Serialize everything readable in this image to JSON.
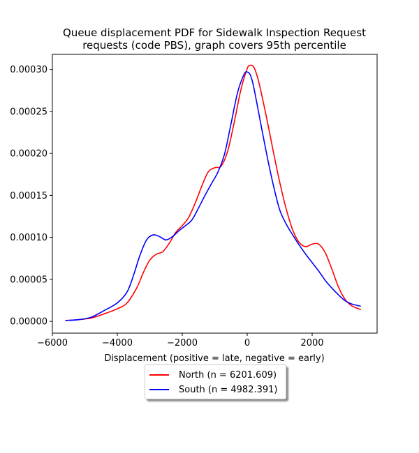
{
  "chart_data": {
    "type": "line",
    "title_line1": "Queue displacement PDF for Sidewalk Inspection Request",
    "title_line2": "requests (code PBS), graph covers 95th percentile",
    "xlabel": "Displacement (positive = late, negative = early)",
    "ylabel": "",
    "xlim": [
      -6000,
      4000
    ],
    "ylim": [
      -1.4e-05,
      0.000318
    ],
    "xticks": [
      -6000,
      -4000,
      -2000,
      0,
      2000
    ],
    "xtick_labels": [
      "−6000",
      "−4000",
      "−2000",
      "0",
      "2000"
    ],
    "yticks": [
      0,
      5e-05,
      0.0001,
      0.00015,
      0.0002,
      0.00025,
      0.0003
    ],
    "ytick_labels": [
      "0.00000",
      "0.00005",
      "0.00010",
      "0.00015",
      "0.00020",
      "0.00025",
      "0.00030"
    ],
    "grid": false,
    "legend_position": "below-center",
    "series": [
      {
        "name": "North (n = 6201.609)",
        "color": "#ff0000",
        "x": [
          -5600,
          -5200,
          -4800,
          -4400,
          -4000,
          -3700,
          -3400,
          -3200,
          -3000,
          -2800,
          -2600,
          -2400,
          -2200,
          -2000,
          -1800,
          -1600,
          -1400,
          -1200,
          -1000,
          -800,
          -600,
          -400,
          -200,
          0,
          100,
          200,
          300,
          400,
          600,
          800,
          1000,
          1200,
          1400,
          1600,
          1800,
          2000,
          2200,
          2400,
          2600,
          2800,
          3000,
          3200,
          3500
        ],
        "y": [
          1e-06,
          2e-06,
          4e-06,
          9e-06,
          1.5e-05,
          2.2e-05,
          4e-05,
          5.8e-05,
          7.3e-05,
          8e-05,
          8.3e-05,
          9.3e-05,
          0.000106,
          0.000114,
          0.000124,
          0.000141,
          0.000161,
          0.000178,
          0.000183,
          0.000185,
          0.000203,
          0.000237,
          0.000275,
          0.000301,
          0.000305,
          0.000303,
          0.000293,
          0.000278,
          0.000242,
          0.000203,
          0.000166,
          0.000134,
          0.000109,
          9.4e-05,
          8.9e-05,
          9.2e-05,
          9.2e-05,
          8.2e-05,
          6.3e-05,
          4.2e-05,
          2.7e-05,
          1.9e-05,
          1.4e-05
        ]
      },
      {
        "name": "South (n = 4982.391)",
        "color": "#0000ff",
        "x": [
          -5600,
          -5200,
          -4800,
          -4400,
          -4000,
          -3700,
          -3500,
          -3300,
          -3100,
          -2900,
          -2700,
          -2500,
          -2300,
          -2100,
          -1900,
          -1700,
          -1500,
          -1300,
          -1100,
          -900,
          -700,
          -500,
          -300,
          -100,
          0,
          100,
          200,
          400,
          600,
          800,
          1000,
          1200,
          1400,
          1600,
          1800,
          2000,
          2200,
          2400,
          2600,
          2800,
          3000,
          3200,
          3500
        ],
        "y": [
          1e-06,
          2e-06,
          5e-06,
          1.3e-05,
          2.2e-05,
          3.5e-05,
          5.5e-05,
          7.9e-05,
          9.7e-05,
          0.000103,
          0.000101,
          9.7e-05,
          0.000101,
          0.000108,
          0.000114,
          0.000121,
          0.000135,
          0.00015,
          0.000164,
          0.000178,
          0.000199,
          0.000235,
          0.000272,
          0.000294,
          0.000297,
          0.000293,
          0.000279,
          0.000239,
          0.000199,
          0.000163,
          0.000133,
          0.000116,
          0.000103,
          9.1e-05,
          8e-05,
          7e-05,
          6e-05,
          4.9e-05,
          4e-05,
          3.2e-05,
          2.5e-05,
          2.1e-05,
          1.8e-05
        ]
      }
    ]
  }
}
